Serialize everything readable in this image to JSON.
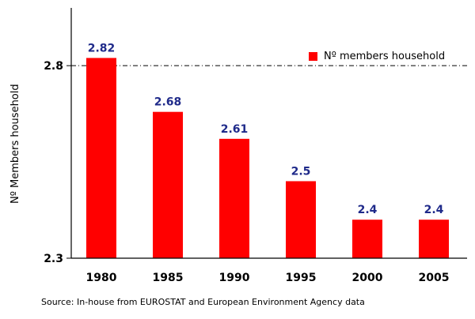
{
  "chart_data": {
    "type": "bar",
    "categories": [
      "1980",
      "1985",
      "1990",
      "1995",
      "2000",
      "2005"
    ],
    "values": [
      2.82,
      2.68,
      2.61,
      2.5,
      2.4,
      2.4
    ],
    "data_labels": [
      "2.82",
      "2.68",
      "2.61",
      "2.5",
      "2.4",
      "2.4"
    ],
    "series": [
      {
        "name": "Nº members household",
        "values": [
          2.82,
          2.68,
          2.61,
          2.5,
          2.4,
          2.4
        ]
      }
    ],
    "title": "",
    "xlabel": "",
    "ylabel": "Nº Members household",
    "ylim": [
      2.3,
      2.95
    ],
    "y_ticks": [
      2.3,
      2.8
    ],
    "y_tick_labels": [
      "2.3",
      "2.8"
    ],
    "reference_line": 2.8,
    "legend_position": "top-right",
    "grid": false,
    "colors": {
      "bar": "#ff0000",
      "data_label": "#1f2a8a",
      "axis": "#000000"
    }
  },
  "legend": {
    "label": "Nº members household"
  },
  "source": "Source: In-house from EUROSTAT and European Environment Agency data"
}
